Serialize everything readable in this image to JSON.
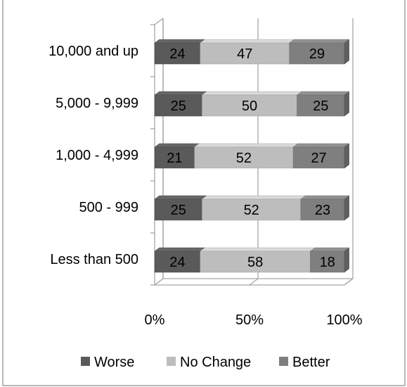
{
  "chart_data": {
    "type": "bar",
    "orientation": "horizontal",
    "stacked": true,
    "percent": true,
    "categories": [
      "10,000 and up",
      "5,000 - 9,999",
      "1,000 - 4,999",
      "500 - 999",
      "Less than 500"
    ],
    "series": [
      {
        "name": "Worse",
        "values": [
          24,
          25,
          21,
          25,
          24
        ],
        "color": "#5a5a5a"
      },
      {
        "name": "No Change",
        "values": [
          47,
          50,
          52,
          52,
          58
        ],
        "color": "#bdbdbd"
      },
      {
        "name": "Better",
        "values": [
          29,
          25,
          27,
          23,
          18
        ],
        "color": "#7f7f7f"
      }
    ],
    "xticks": [
      "0%",
      "50%",
      "100%"
    ],
    "xlim": [
      0,
      100
    ],
    "legend_position": "bottom",
    "grid": true
  }
}
